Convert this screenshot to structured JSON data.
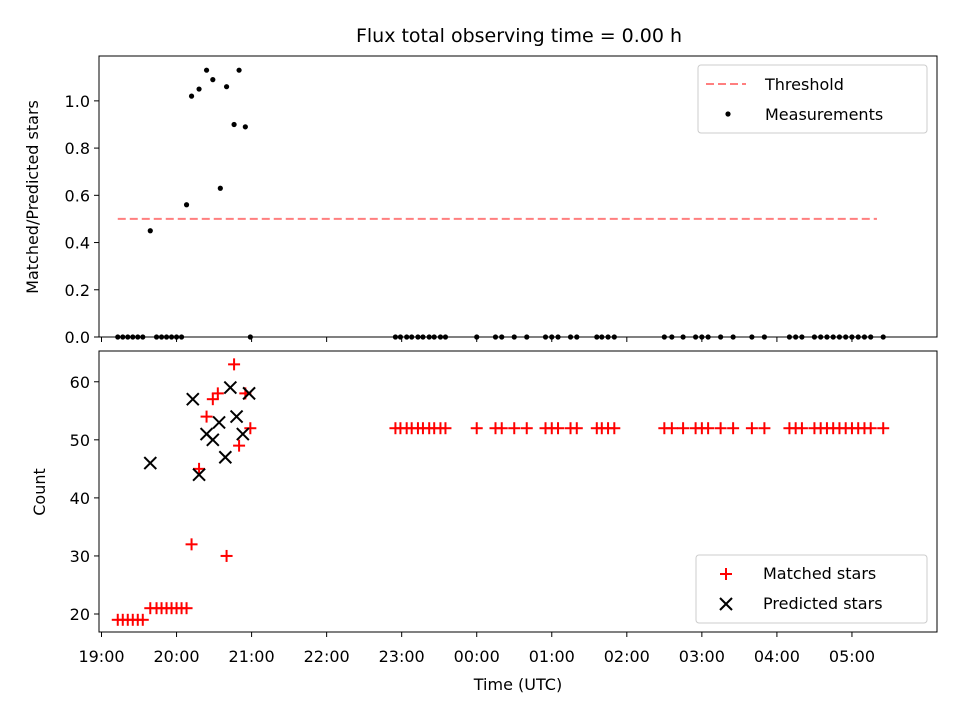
{
  "title": "Flux total observing time = 0.00 h",
  "top": {
    "ylabel": "Matched/Predicted stars",
    "ylim": [
      0,
      1.19
    ],
    "yticks": [
      0.0,
      0.2,
      0.4,
      0.6,
      0.8,
      1.0
    ],
    "ytick_labels": [
      "0.0",
      "0.2",
      "0.4",
      "0.6",
      "0.8",
      "1.0"
    ],
    "legend": {
      "threshold_label": "Threshold",
      "measurements_label": "Measurements",
      "position": "top-right"
    }
  },
  "bottom": {
    "ylabel": "Count",
    "xlabel": "Time (UTC)",
    "ylim": [
      16.9,
      65.3
    ],
    "yticks": [
      20,
      30,
      40,
      50,
      60
    ],
    "ytick_labels": [
      "20",
      "30",
      "40",
      "50",
      "60"
    ],
    "legend": {
      "matched_label": "Matched stars",
      "predicted_label": "Predicted stars",
      "position": "bottom-right"
    }
  },
  "x_axis": {
    "xlim": [
      "18:58",
      "06:08"
    ],
    "ticks": [
      "19:00",
      "20:00",
      "21:00",
      "22:00",
      "23:00",
      "00:00",
      "01:00",
      "02:00",
      "03:00",
      "04:00",
      "05:00"
    ],
    "tick_labels": [
      "19:00",
      "20:00",
      "21:00",
      "22:00",
      "23:00",
      "00:00",
      "01:00",
      "02:00",
      "03:00",
      "04:00",
      "05:00"
    ]
  },
  "colors": {
    "threshold": "#ff7f7f",
    "matched": "#ff0000",
    "predicted": "#000000",
    "measurement": "#000000"
  },
  "chart_data": [
    {
      "type": "scatter",
      "panel": "top",
      "xlabel": "",
      "ylabel": "Matched/Predicted stars",
      "threshold": {
        "name": "Threshold",
        "value": 0.5,
        "x_range": [
          "19:13",
          "05:20"
        ]
      },
      "series": [
        {
          "name": "Measurements",
          "x": [
            "19:13",
            "19:17",
            "19:21",
            "19:25",
            "19:29",
            "19:33",
            "19:39",
            "19:44",
            "19:48",
            "19:52",
            "19:56",
            "20:00",
            "20:04",
            "20:08",
            "20:12",
            "20:18",
            "20:24",
            "20:29",
            "20:35",
            "20:40",
            "20:46",
            "20:50",
            "20:55",
            "20:59",
            "22:55",
            "22:59",
            "23:04",
            "23:08",
            "23:13",
            "23:17",
            "23:22",
            "23:26",
            "23:31",
            "23:35",
            "00:00",
            "00:15",
            "00:20",
            "00:30",
            "00:40",
            "00:55",
            "01:00",
            "01:05",
            "01:15",
            "01:20",
            "01:36",
            "01:40",
            "01:45",
            "01:50",
            "02:30",
            "02:36",
            "02:45",
            "02:55",
            "03:00",
            "03:05",
            "03:15",
            "03:25",
            "03:40",
            "03:50",
            "04:10",
            "04:15",
            "04:20",
            "04:30",
            "04:35",
            "04:40",
            "04:45",
            "04:50",
            "04:55",
            "05:00",
            "05:05",
            "05:10",
            "05:15",
            "05:25"
          ],
          "y": [
            0,
            0,
            0,
            0,
            0,
            0,
            0.45,
            0,
            0,
            0,
            0,
            0,
            0,
            0.56,
            1.02,
            1.05,
            1.13,
            1.09,
            0.63,
            1.06,
            0.9,
            1.13,
            0.89,
            0,
            0,
            0,
            0,
            0,
            0,
            0,
            0,
            0,
            0,
            0,
            0,
            0,
            0,
            0,
            0,
            0,
            0,
            0,
            0,
            0,
            0,
            0,
            0,
            0,
            0,
            0,
            0,
            0,
            0,
            0,
            0,
            0,
            0,
            0,
            0,
            0,
            0,
            0,
            0,
            0,
            0,
            0,
            0,
            0,
            0,
            0,
            0,
            0
          ]
        }
      ]
    },
    {
      "type": "scatter",
      "panel": "bottom",
      "xlabel": "Time (UTC)",
      "ylabel": "Count",
      "series": [
        {
          "name": "Matched stars",
          "marker": "+",
          "x": [
            "19:13",
            "19:17",
            "19:21",
            "19:25",
            "19:29",
            "19:33",
            "19:39",
            "19:44",
            "19:48",
            "19:52",
            "19:56",
            "20:00",
            "20:04",
            "20:08",
            "20:12",
            "20:18",
            "20:24",
            "20:29",
            "20:33",
            "20:40",
            "20:46",
            "20:50",
            "20:55",
            "20:59",
            "22:55",
            "22:59",
            "23:04",
            "23:08",
            "23:13",
            "23:17",
            "23:22",
            "23:26",
            "23:31",
            "23:35",
            "00:00",
            "00:15",
            "00:20",
            "00:30",
            "00:40",
            "00:55",
            "01:00",
            "01:05",
            "01:15",
            "01:20",
            "01:36",
            "01:40",
            "01:45",
            "01:50",
            "02:30",
            "02:36",
            "02:45",
            "02:55",
            "03:00",
            "03:05",
            "03:15",
            "03:25",
            "03:40",
            "03:50",
            "04:10",
            "04:15",
            "04:20",
            "04:30",
            "04:35",
            "04:40",
            "04:45",
            "04:50",
            "04:55",
            "05:00",
            "05:05",
            "05:10",
            "05:15",
            "05:25"
          ],
          "y": [
            19,
            19,
            19,
            19,
            19,
            19,
            21,
            21,
            21,
            21,
            21,
            21,
            21,
            21,
            32,
            45,
            54,
            57,
            58,
            30,
            63,
            49,
            58,
            52,
            52,
            52,
            52,
            52,
            52,
            52,
            52,
            52,
            52,
            52,
            52,
            52,
            52,
            52,
            52,
            52,
            52,
            52,
            52,
            52,
            52,
            52,
            52,
            52,
            52,
            52,
            52,
            52,
            52,
            52,
            52,
            52,
            52,
            52,
            52,
            52,
            52,
            52,
            52,
            52,
            52,
            52,
            52,
            52,
            52,
            52,
            52,
            52
          ]
        },
        {
          "name": "Predicted stars",
          "marker": "x",
          "x": [
            "19:39",
            "20:13",
            "20:18",
            "20:24",
            "20:29",
            "20:34",
            "20:39",
            "20:43",
            "20:48",
            "20:53",
            "20:58"
          ],
          "y": [
            46,
            57,
            44,
            51,
            50,
            53,
            47,
            59,
            54,
            51,
            58
          ]
        }
      ]
    }
  ]
}
